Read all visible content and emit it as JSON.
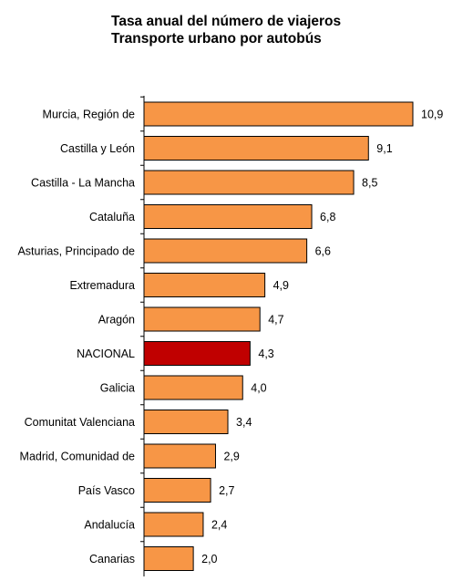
{
  "chart_data": {
    "type": "bar",
    "orientation": "horizontal",
    "title": "Tasa anual del número de viajeros",
    "subtitle": "Transporte urbano por autobús",
    "categories": [
      "Murcia, Región de",
      "Castilla y León",
      "Castilla - La Mancha",
      "Cataluña",
      "Asturias, Principado de",
      "Extremadura",
      "Aragón",
      "NACIONAL",
      "Galicia",
      "Comunitat Valenciana",
      "Madrid, Comunidad de",
      "País Vasco",
      "Andalucía",
      "Canarias"
    ],
    "labels": [
      "10,9",
      "9,1",
      "8,5",
      "6,8",
      "6,6",
      "4,9",
      "4,7",
      "4,3",
      "4,0",
      "3,4",
      "2,9",
      "2,7",
      "2,4",
      "2,0"
    ],
    "values": [
      10.9,
      9.1,
      8.5,
      6.8,
      6.6,
      4.9,
      4.7,
      4.3,
      4.0,
      3.4,
      2.9,
      2.7,
      2.4,
      2.0
    ],
    "highlight": "NACIONAL",
    "colors": {
      "bar": "#F79646",
      "highlight": "#C00000",
      "edge": "#000000"
    },
    "xlim": [
      0,
      11.5
    ],
    "grid": false,
    "legend": "none"
  }
}
